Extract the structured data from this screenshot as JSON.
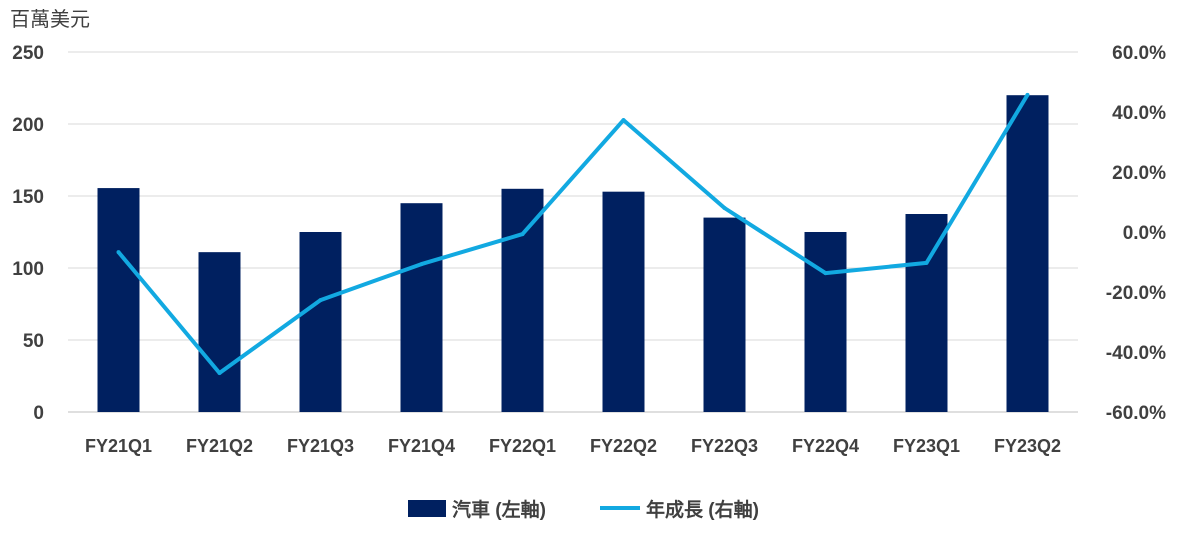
{
  "chart_data": {
    "type": "bar+line",
    "unit_label": "百萬美元",
    "categories": [
      "FY21Q1",
      "FY21Q2",
      "FY21Q3",
      "FY21Q4",
      "FY22Q1",
      "FY22Q2",
      "FY22Q3",
      "FY22Q4",
      "FY23Q1",
      "FY23Q2"
    ],
    "series": [
      {
        "name": "汽車 (左軸)",
        "type": "bar",
        "axis": "left",
        "color": "#002060",
        "values": [
          155.5,
          111,
          125,
          145,
          155,
          153,
          135,
          125,
          137.5,
          220
        ]
      },
      {
        "name": "年成長 (右軸)",
        "type": "line",
        "axis": "right",
        "color": "#12A9E1",
        "values": [
          -6.7,
          -47.0,
          -22.7,
          -10.7,
          -0.7,
          37.3,
          8.0,
          -13.7,
          -10.3,
          45.7
        ]
      }
    ],
    "left_axis": {
      "ylim": [
        0,
        250
      ],
      "ticks": [
        "0",
        "50",
        "100",
        "150",
        "200",
        "250"
      ]
    },
    "right_axis": {
      "ylim": [
        -60,
        60
      ],
      "ticks": [
        "-60.0%",
        "-40.0%",
        "-20.0%",
        "0.0%",
        "20.0%",
        "40.0%",
        "60.0%"
      ]
    },
    "grid": true,
    "legend_position": "bottom"
  }
}
